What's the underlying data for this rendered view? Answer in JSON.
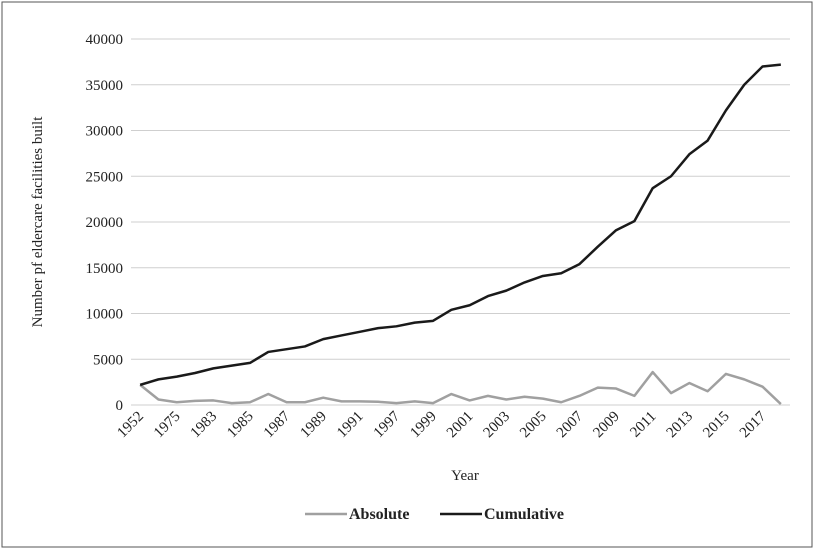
{
  "chart_data": {
    "type": "line",
    "xlabel": "Year",
    "ylabel": "Number pf eldercare facilities built",
    "categories": [
      "1952",
      null,
      "1975",
      null,
      "1983",
      null,
      "1985",
      null,
      "1987",
      null,
      "1989",
      null,
      "1991",
      null,
      "1997",
      null,
      "1999",
      null,
      "2001",
      null,
      "2003",
      null,
      "2005",
      null,
      "2007",
      null,
      "2009",
      null,
      "2011",
      null,
      "2013",
      null,
      "2015",
      null,
      "2017",
      null
    ],
    "series": [
      {
        "name": "Absolute",
        "color": "#a0a0a0",
        "values": [
          2200,
          600,
          300,
          450,
          500,
          200,
          300,
          1200,
          300,
          300,
          800,
          400,
          400,
          350,
          200,
          400,
          200,
          1200,
          500,
          1000,
          600,
          900,
          700,
          300,
          1000,
          1900,
          1800,
          1000,
          3600,
          1300,
          2400,
          1500,
          3400,
          2800,
          2000,
          100
        ]
      },
      {
        "name": "Cumulative",
        "color": "#1a1a1a",
        "values": [
          2200,
          2800,
          3100,
          3500,
          4000,
          4300,
          4600,
          5800,
          6100,
          6400,
          7200,
          7600,
          8000,
          8400,
          8600,
          9000,
          9200,
          10400,
          10900,
          11900,
          12500,
          13400,
          14100,
          14400,
          15400,
          17300,
          19100,
          20100,
          23700,
          25000,
          27400,
          28900,
          32200,
          35000,
          37000,
          37200
        ]
      }
    ],
    "ylim": [
      0,
      40000
    ],
    "yticks": [
      0,
      5000,
      10000,
      15000,
      20000,
      25000,
      30000,
      35000,
      40000
    ],
    "grid": true,
    "legend": "bottom"
  }
}
